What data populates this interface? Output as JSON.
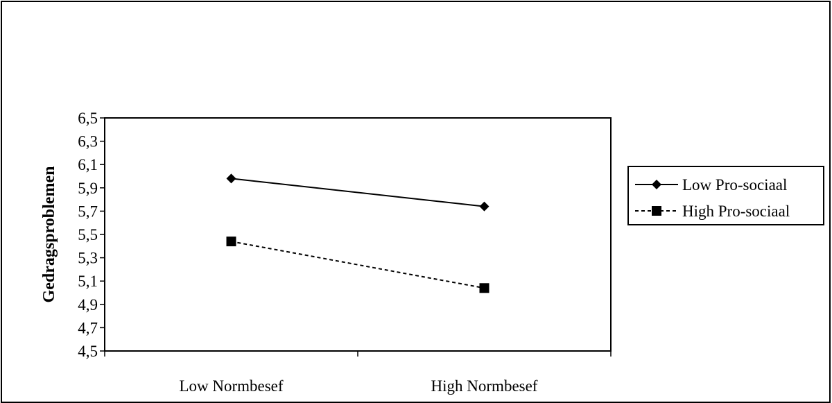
{
  "chart_data": {
    "type": "line",
    "categories": [
      "Low Normbesef",
      "High Normbesef"
    ],
    "series": [
      {
        "name": "Low Pro-sociaal",
        "values": [
          5.98,
          5.74
        ],
        "marker": "diamond",
        "line_style": "solid",
        "color": "#000000"
      },
      {
        "name": "High Pro-sociaal",
        "values": [
          5.44,
          5.04
        ],
        "marker": "square",
        "line_style": "dashed",
        "color": "#000000"
      }
    ],
    "ylabel": "Gedragsproblemen",
    "xlabel": "",
    "ylim": [
      4.5,
      6.5
    ],
    "yticks": [
      "4,5",
      "4,7",
      "4,9",
      "5,1",
      "5,3",
      "5,5",
      "5,7",
      "5,9",
      "6,1",
      "6,3",
      "6,5"
    ],
    "grid": false,
    "legend_position": "right"
  }
}
